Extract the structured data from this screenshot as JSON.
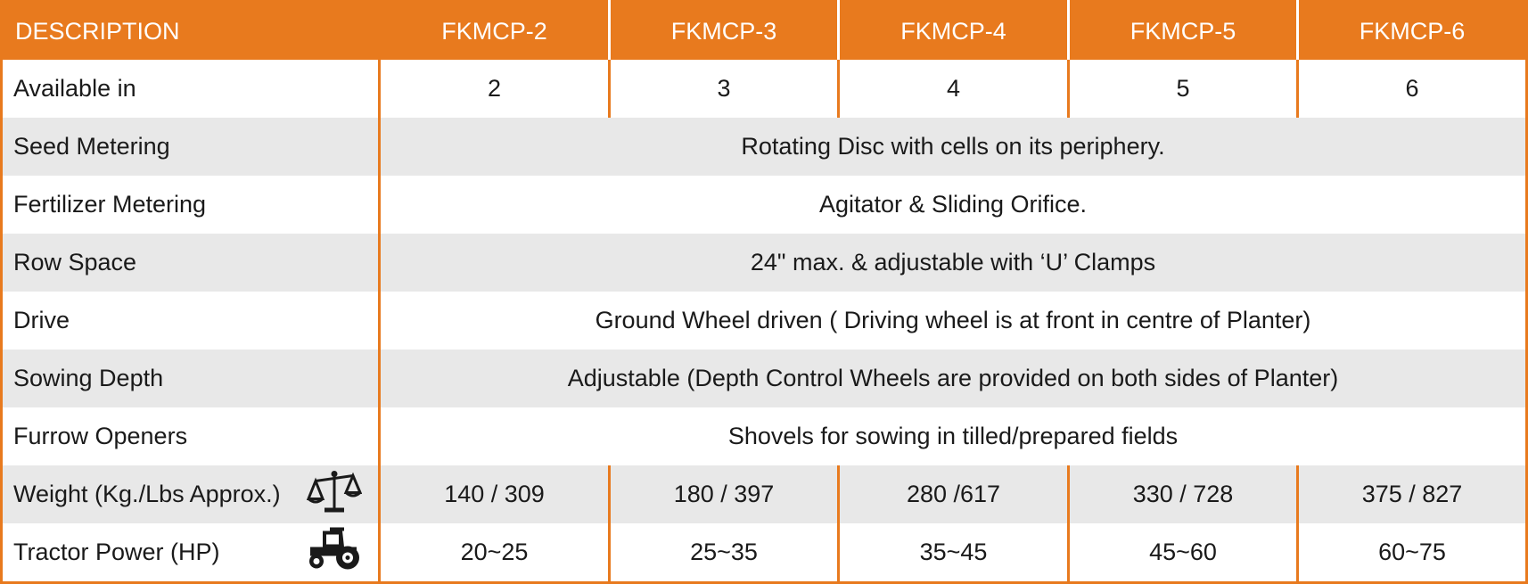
{
  "header": {
    "description": "DESCRIPTION",
    "models": [
      "FKMCP-2",
      "FKMCP-3",
      "FKMCP-4",
      "FKMCP-5",
      "FKMCP-6"
    ]
  },
  "rows": {
    "available_in": {
      "label": "Available in",
      "values": [
        "2",
        "3",
        "4",
        "5",
        "6"
      ]
    },
    "seed_metering": {
      "label": "Seed Metering",
      "value": "Rotating Disc with cells on its periphery."
    },
    "fertilizer_metering": {
      "label": "Fertilizer Metering",
      "value": "Agitator & Sliding Orifice."
    },
    "row_space": {
      "label": "Row Space",
      "value": "24\" max. & adjustable with ‘U’ Clamps"
    },
    "drive": {
      "label": "Drive",
      "value": "Ground Wheel driven ( Driving wheel is at front in centre of Planter)"
    },
    "sowing_depth": {
      "label": "Sowing Depth",
      "value": "Adjustable (Depth Control Wheels are provided on both sides of Planter)"
    },
    "furrow_openers": {
      "label": "Furrow Openers",
      "value": "Shovels for sowing in tilled/prepared fields"
    },
    "weight": {
      "label": "Weight (Kg./Lbs Approx.)",
      "icon": "weighing-scale-icon",
      "values": [
        "140 / 309",
        "180 / 397",
        "280 /617",
        "330 / 728",
        "375 / 827"
      ]
    },
    "tractor_power": {
      "label": "Tractor Power (HP)",
      "icon": "tractor-icon",
      "values": [
        "20~25",
        "25~35",
        "35~45",
        "45~60",
        "60~75"
      ]
    }
  },
  "colors": {
    "accent": "#e87a1e",
    "band": "#e8e8e8"
  }
}
